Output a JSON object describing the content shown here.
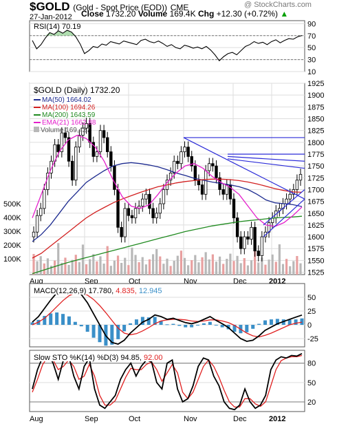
{
  "header": {
    "symbol": "$GOLD",
    "name": "(Gold - Spot Price (EOD))",
    "exchange": "CME",
    "date": "27-Jan-2012",
    "close_label": "Close",
    "close_value": "1732.20",
    "volume_label": "Volume",
    "volume_value": "169.4K",
    "chg_label": "Chg",
    "chg_value": "+12.30 (+0.72%)",
    "chg_arrow": "▲",
    "watermark": "@ StockCharts.com"
  },
  "chart_data": [
    {
      "type": "line",
      "panel": "RSI",
      "legend": "RSI(14) 70.19",
      "ylim": [
        10,
        95
      ],
      "ticks": [
        10,
        30,
        50,
        70,
        90
      ],
      "reference_lines": [
        30,
        70
      ],
      "x": [
        0,
        2,
        4,
        6,
        8,
        10,
        12,
        14,
        16,
        18,
        20,
        22,
        24,
        26,
        28,
        30,
        32,
        34,
        36,
        38,
        40,
        42,
        44,
        46,
        48,
        50,
        52,
        54,
        56,
        58,
        60,
        62,
        64,
        66,
        68,
        70,
        72,
        74,
        76,
        78,
        80,
        82,
        84,
        86,
        88,
        90,
        92,
        94,
        96,
        98,
        100,
        102,
        104,
        106,
        108,
        110,
        112,
        114,
        116,
        118,
        120,
        122,
        124
      ],
      "values": [
        62,
        48,
        55,
        66,
        75,
        72,
        78,
        74,
        79,
        76,
        68,
        56,
        40,
        45,
        52,
        50,
        56,
        54,
        60,
        58,
        56,
        61,
        59,
        57,
        55,
        62,
        64,
        60,
        58,
        61,
        57,
        52,
        55,
        50,
        48,
        54,
        52,
        49,
        51,
        48,
        52,
        46,
        38,
        28,
        35,
        40,
        42,
        38,
        45,
        52,
        55,
        60,
        57,
        59,
        55,
        60,
        63,
        58,
        62,
        65,
        64,
        68,
        70.19
      ]
    },
    {
      "type": "candlestick",
      "panel": "price",
      "legend": "$GOLD (Daily) 1732.20",
      "period": "Aug 2011 - 27-Jan-2012",
      "ylim": [
        1520,
        1925
      ],
      "y_ticks": [
        1525,
        1550,
        1575,
        1600,
        1625,
        1650,
        1675,
        1700,
        1725,
        1750,
        1775,
        1800,
        1825,
        1850,
        1875,
        1900,
        1925
      ],
      "volume_ticks": [
        "100K",
        "200K",
        "300K",
        "400K",
        "500K"
      ],
      "x_labels": [
        "Aug",
        "Sep",
        "Oct",
        "Nov",
        "Dec",
        "2012"
      ],
      "close": [
        1610,
        1645,
        1660,
        1700,
        1735,
        1760,
        1795,
        1780,
        1820,
        1810,
        1760,
        1720,
        1790,
        1815,
        1830,
        1840,
        1800,
        1770,
        1780,
        1825,
        1810,
        1780,
        1750,
        1700,
        1620,
        1600,
        1660,
        1645,
        1640,
        1660,
        1665,
        1680,
        1690,
        1660,
        1640,
        1650,
        1670,
        1700,
        1720,
        1735,
        1760,
        1755,
        1780,
        1790,
        1770,
        1750,
        1720,
        1710,
        1690,
        1740,
        1755,
        1750,
        1725,
        1700,
        1690,
        1710,
        1680,
        1640,
        1600,
        1575,
        1600,
        1595,
        1620,
        1570,
        1560,
        1600,
        1610,
        1630,
        1640,
        1655,
        1660,
        1670,
        1680,
        1690,
        1700,
        1720,
        1732.2
      ],
      "series": [
        {
          "name": "MA(50) 1664.02",
          "color": "#1c2a8f",
          "values": [
            1590,
            1605,
            1625,
            1650,
            1675,
            1695,
            1715,
            1728,
            1740,
            1750,
            1755,
            1757,
            1755,
            1752,
            1748,
            1742,
            1735,
            1730,
            1724,
            1720,
            1716,
            1713,
            1710,
            1706,
            1700,
            1690,
            1678,
            1672,
            1670,
            1668,
            1664.02
          ]
        },
        {
          "name": "MA(100) 1694.26",
          "color": "#d21f1f",
          "values": [
            1555,
            1565,
            1580,
            1595,
            1610,
            1625,
            1640,
            1652,
            1662,
            1672,
            1680,
            1687,
            1694,
            1700,
            1706,
            1710,
            1714,
            1717,
            1719,
            1721,
            1722,
            1722,
            1721,
            1719,
            1716,
            1712,
            1707,
            1702,
            1698,
            1695,
            1694.26
          ]
        },
        {
          "name": "MA(200) 1643.59",
          "color": "#1f8a1f",
          "values": [
            1522,
            1528,
            1534,
            1540,
            1546,
            1551,
            1556,
            1561,
            1566,
            1571,
            1576,
            1581,
            1586,
            1591,
            1596,
            1601,
            1606,
            1611,
            1615,
            1619,
            1623,
            1626,
            1629,
            1632,
            1634,
            1636,
            1638,
            1640,
            1641,
            1642,
            1643.59
          ]
        },
        {
          "name": "EMA(21) 1662.88",
          "color": "#e41ecb",
          "values": [
            1640,
            1690,
            1740,
            1780,
            1805,
            1815,
            1808,
            1790,
            1760,
            1720,
            1685,
            1665,
            1660,
            1668,
            1690,
            1715,
            1735,
            1750,
            1755,
            1745,
            1728,
            1715,
            1705,
            1690,
            1665,
            1640,
            1625,
            1622,
            1630,
            1645,
            1662.88
          ]
        }
      ],
      "volume_legend": "Volume 169,427",
      "trendlines": [
        {
          "from": [
            "Nov",
            1810
          ],
          "to": [
            "2012+",
            1810
          ]
        },
        {
          "from": [
            "Nov",
            1810
          ],
          "to": [
            "2012+",
            1680
          ]
        },
        {
          "from": [
            "Dec",
            1775
          ],
          "to": [
            "2012+",
            1775
          ]
        },
        {
          "from": [
            "Dec",
            1770
          ],
          "to": [
            "2012+",
            1760
          ]
        },
        {
          "from": [
            "Dec",
            1765
          ],
          "to": [
            "2012+",
            1745
          ]
        },
        {
          "from": [
            "2012",
            1600
          ],
          "to": [
            "2012+",
            1680
          ]
        },
        {
          "from": [
            "2012",
            1625
          ],
          "to": [
            "2012+",
            1700
          ]
        }
      ]
    },
    {
      "type": "line",
      "panel": "MACD",
      "legend": {
        "name": "MACD(12,26,9)",
        "macd": "17.780",
        "signal": "4.835",
        "hist": "12.945"
      },
      "ylim": [
        -40,
        75
      ],
      "ticks": [
        -25,
        0,
        25,
        50
      ],
      "macd": [
        5,
        15,
        30,
        45,
        58,
        66,
        70,
        64,
        55,
        40,
        20,
        0,
        -20,
        -32,
        -35,
        -28,
        -15,
        -5,
        5,
        10,
        18,
        15,
        10,
        12,
        8,
        4,
        2,
        5,
        10,
        15,
        8,
        2,
        -5,
        -15,
        -25,
        -30,
        -28,
        -20,
        -10,
        -4,
        2,
        6,
        10,
        14,
        17.78
      ],
      "signal": [
        0,
        5,
        12,
        22,
        33,
        44,
        53,
        58,
        58,
        54,
        46,
        35,
        22,
        8,
        -6,
        -15,
        -18,
        -16,
        -11,
        -5,
        2,
        7,
        9,
        10,
        10,
        9,
        7,
        6,
        7,
        9,
        9,
        7,
        4,
        -1,
        -8,
        -15,
        -20,
        -22,
        -19,
        -15,
        -10,
        -5,
        0,
        3,
        4.835
      ]
    },
    {
      "type": "line",
      "panel": "Slow STO",
      "legend": {
        "name": "Slow STO %K(14) %D(3)",
        "k": "94.85",
        "d": "92.00"
      },
      "ylim": [
        5,
        100
      ],
      "ticks": [
        20,
        50,
        80
      ],
      "k": [
        40,
        70,
        90,
        95,
        80,
        55,
        85,
        92,
        60,
        40,
        75,
        88,
        40,
        15,
        10,
        20,
        30,
        55,
        70,
        80,
        60,
        75,
        85,
        82,
        50,
        40,
        80,
        85,
        40,
        20,
        25,
        45,
        75,
        88,
        85,
        60,
        45,
        20,
        10,
        8,
        15,
        40,
        20,
        10,
        15,
        30,
        70,
        85,
        90,
        88,
        92,
        91,
        94.85
      ],
      "d": [
        35,
        55,
        78,
        90,
        85,
        70,
        75,
        85,
        75,
        55,
        60,
        78,
        60,
        30,
        15,
        15,
        22,
        40,
        58,
        72,
        70,
        70,
        78,
        82,
        70,
        52,
        65,
        78,
        65,
        35,
        25,
        35,
        55,
        75,
        85,
        75,
        58,
        38,
        20,
        12,
        12,
        25,
        25,
        17,
        13,
        20,
        45,
        70,
        84,
        88,
        90,
        90,
        92.0
      ]
    }
  ]
}
